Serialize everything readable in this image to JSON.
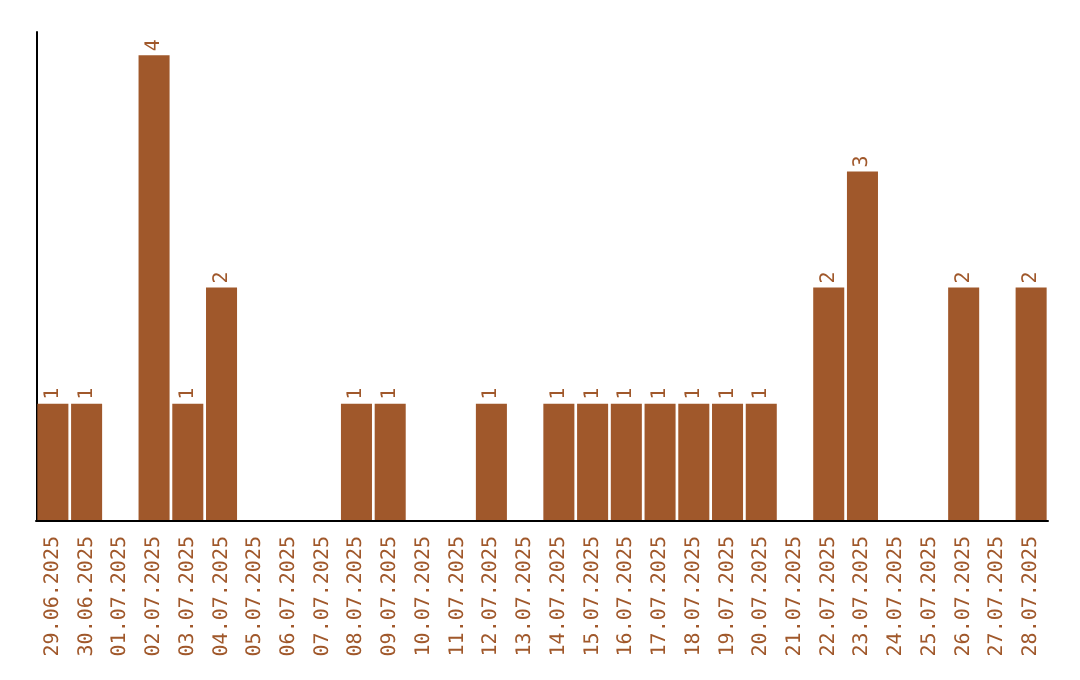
{
  "chart_data": {
    "type": "bar",
    "categories": [
      "29.06.2025",
      "30.06.2025",
      "01.07.2025",
      "02.07.2025",
      "03.07.2025",
      "04.07.2025",
      "05.07.2025",
      "06.07.2025",
      "07.07.2025",
      "08.07.2025",
      "09.07.2025",
      "10.07.2025",
      "11.07.2025",
      "12.07.2025",
      "13.07.2025",
      "14.07.2025",
      "15.07.2025",
      "16.07.2025",
      "17.07.2025",
      "18.07.2025",
      "19.07.2025",
      "20.07.2025",
      "21.07.2025",
      "22.07.2025",
      "23.07.2025",
      "24.07.2025",
      "25.07.2025",
      "26.07.2025",
      "27.07.2025",
      "28.07.2025"
    ],
    "values": [
      1,
      1,
      0,
      4,
      1,
      2,
      0,
      0,
      0,
      1,
      1,
      0,
      0,
      1,
      0,
      1,
      1,
      1,
      1,
      1,
      1,
      1,
      0,
      2,
      3,
      0,
      0,
      2,
      0,
      2
    ],
    "value_labels": [
      "1",
      "1",
      null,
      "4",
      "1",
      "2",
      null,
      null,
      null,
      "1",
      "1",
      null,
      null,
      "1",
      null,
      "1",
      "1",
      "1",
      "1",
      "1",
      "1",
      "1",
      null,
      "2",
      "3",
      null,
      null,
      "2",
      null,
      "2"
    ],
    "color": "#a0582b",
    "ylim": [
      0,
      4.2
    ],
    "tick_labels": "x"
  }
}
